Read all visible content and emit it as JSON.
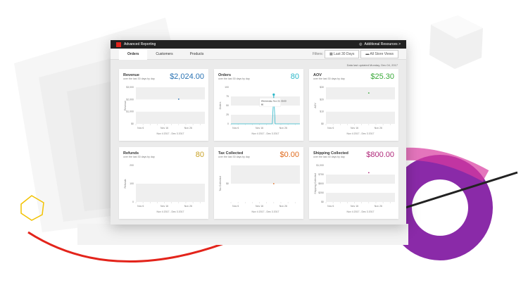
{
  "header": {
    "title": "Advanced Reporting",
    "resources": "Additional Resources >"
  },
  "tabs": [
    {
      "label": "Orders",
      "active": true
    },
    {
      "label": "Customers"
    },
    {
      "label": "Products"
    }
  ],
  "filters": {
    "label": "Filters:",
    "range": "Last 30 Days",
    "store": "All Store Views"
  },
  "updated": "Data last updated Monday, Dec 04, 2017",
  "chart_data": [
    {
      "type": "scatter",
      "title": "Revenue",
      "subtitle": "over the last 30 days by day",
      "total": "$2,024.00",
      "color": "#2a73b3",
      "ylabel": "Revenue",
      "yticks": [
        "$0",
        "$1,000",
        "$2,000",
        "$3,000"
      ],
      "ylim": [
        0,
        3000
      ],
      "xticks": [
        "Nov 6",
        "Nov 16",
        "Nov 26"
      ],
      "xrange": "Nov 4 2017 - Dec 3 2017",
      "points": [
        {
          "x": "Nov 22",
          "y": 2024
        }
      ]
    },
    {
      "type": "line",
      "title": "Orders",
      "subtitle": "over the last 30 days by day",
      "total": "80",
      "color": "#2bb7c9",
      "ylabel": "Orders",
      "yticks": [
        "0",
        "25",
        "50",
        "75",
        "100"
      ],
      "ylim": [
        0,
        100
      ],
      "xticks": [
        "Nov 6",
        "Nov 16",
        "Nov 26"
      ],
      "xrange": "Nov 4 2017 - Dec 3 2017",
      "points": [
        {
          "x": "Nov 22",
          "y": 80
        }
      ],
      "tooltip": {
        "date": "Wednesday, Nov 22, 00:00",
        "value": "80"
      }
    },
    {
      "type": "scatter",
      "title": "AOV",
      "subtitle": "over the last 30 days by day",
      "total": "$25.30",
      "color": "#3aa93a",
      "ylabel": "AOV",
      "yticks": [
        "$0",
        "$10",
        "$20",
        "$30"
      ],
      "ylim": [
        0,
        30
      ],
      "xticks": [
        "Nov 6",
        "Nov 16",
        "Nov 26"
      ],
      "xrange": "Nov 4 2017 - Dec 3 2017",
      "points": [
        {
          "x": "Nov 22",
          "y": 25.3
        }
      ]
    },
    {
      "type": "scatter",
      "title": "Refunds",
      "subtitle": "over the last 30 days by day",
      "total": "80",
      "color": "#c9a227",
      "ylabel": "Refunds",
      "yticks": [
        "0",
        "100",
        "200"
      ],
      "ylim": [
        0,
        200
      ],
      "xticks": [
        "Nov 6",
        "Nov 16",
        "Nov 26"
      ],
      "xrange": "Nov 4 2017 - Dec 3 2017",
      "points": []
    },
    {
      "type": "scatter",
      "title": "Tax Collected",
      "subtitle": "over the last 30 days by day",
      "total": "$0.00",
      "color": "#e06c1f",
      "ylabel": "Tax Collected",
      "yticks": [
        "$0"
      ],
      "ylim": [
        -1,
        1
      ],
      "xticks": [
        "Nov 6",
        "Nov 16",
        "Nov 26"
      ],
      "xrange": "Nov 4 2017 - Dec 3 2017",
      "points": [
        {
          "x": "Nov 22",
          "y": 0
        }
      ]
    },
    {
      "type": "scatter",
      "title": "Shipping Collected",
      "subtitle": "over the last 30 days by day",
      "total": "$800.00",
      "color": "#b0287a",
      "ylabel": "Shipping Collected",
      "yticks": [
        "$0",
        "$250",
        "$500",
        "$750",
        "$1,000"
      ],
      "ylim": [
        0,
        1000
      ],
      "xticks": [
        "Nov 6",
        "Nov 16",
        "Nov 26"
      ],
      "xrange": "Nov 4 2017 - Dec 3 2017",
      "points": [
        {
          "x": "Nov 22",
          "y": 800
        }
      ]
    }
  ]
}
